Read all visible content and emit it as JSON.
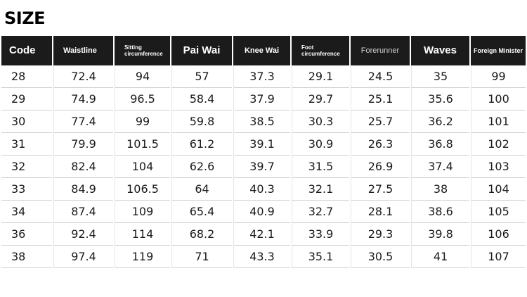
{
  "title": "SIZE",
  "table": {
    "headers": [
      "Code",
      "Waistline",
      "Sitting circumference",
      "Pai Wai",
      "Knee Wai",
      "Foot circumference",
      "Forerunner",
      "Waves",
      "Foreign Minister"
    ],
    "rows": [
      [
        "28",
        "72.4",
        "94",
        "57",
        "37.3",
        "29.1",
        "24.5",
        "35",
        "99"
      ],
      [
        "29",
        "74.9",
        "96.5",
        "58.4",
        "37.9",
        "29.7",
        "25.1",
        "35.6",
        "100"
      ],
      [
        "30",
        "77.4",
        "99",
        "59.8",
        "38.5",
        "30.3",
        "25.7",
        "36.2",
        "101"
      ],
      [
        "31",
        "79.9",
        "101.5",
        "61.2",
        "39.1",
        "30.9",
        "26.3",
        "36.8",
        "102"
      ],
      [
        "32",
        "82.4",
        "104",
        "62.6",
        "39.7",
        "31.5",
        "26.9",
        "37.4",
        "103"
      ],
      [
        "33",
        "84.9",
        "106.5",
        "64",
        "40.3",
        "32.1",
        "27.5",
        "38",
        "104"
      ],
      [
        "34",
        "87.4",
        "109",
        "65.4",
        "40.9",
        "32.7",
        "28.1",
        "38.6",
        "105"
      ],
      [
        "36",
        "92.4",
        "114",
        "68.2",
        "42.1",
        "33.9",
        "29.3",
        "39.8",
        "106"
      ],
      [
        "38",
        "97.4",
        "119",
        "71",
        "43.3",
        "35.1",
        "30.5",
        "41",
        "107"
      ]
    ]
  },
  "colors": {
    "header_background": "#1b1b1b",
    "header_text": "#ffffff",
    "cell_text": "#1a1a1a",
    "grid_line": "#cfcfcf"
  }
}
